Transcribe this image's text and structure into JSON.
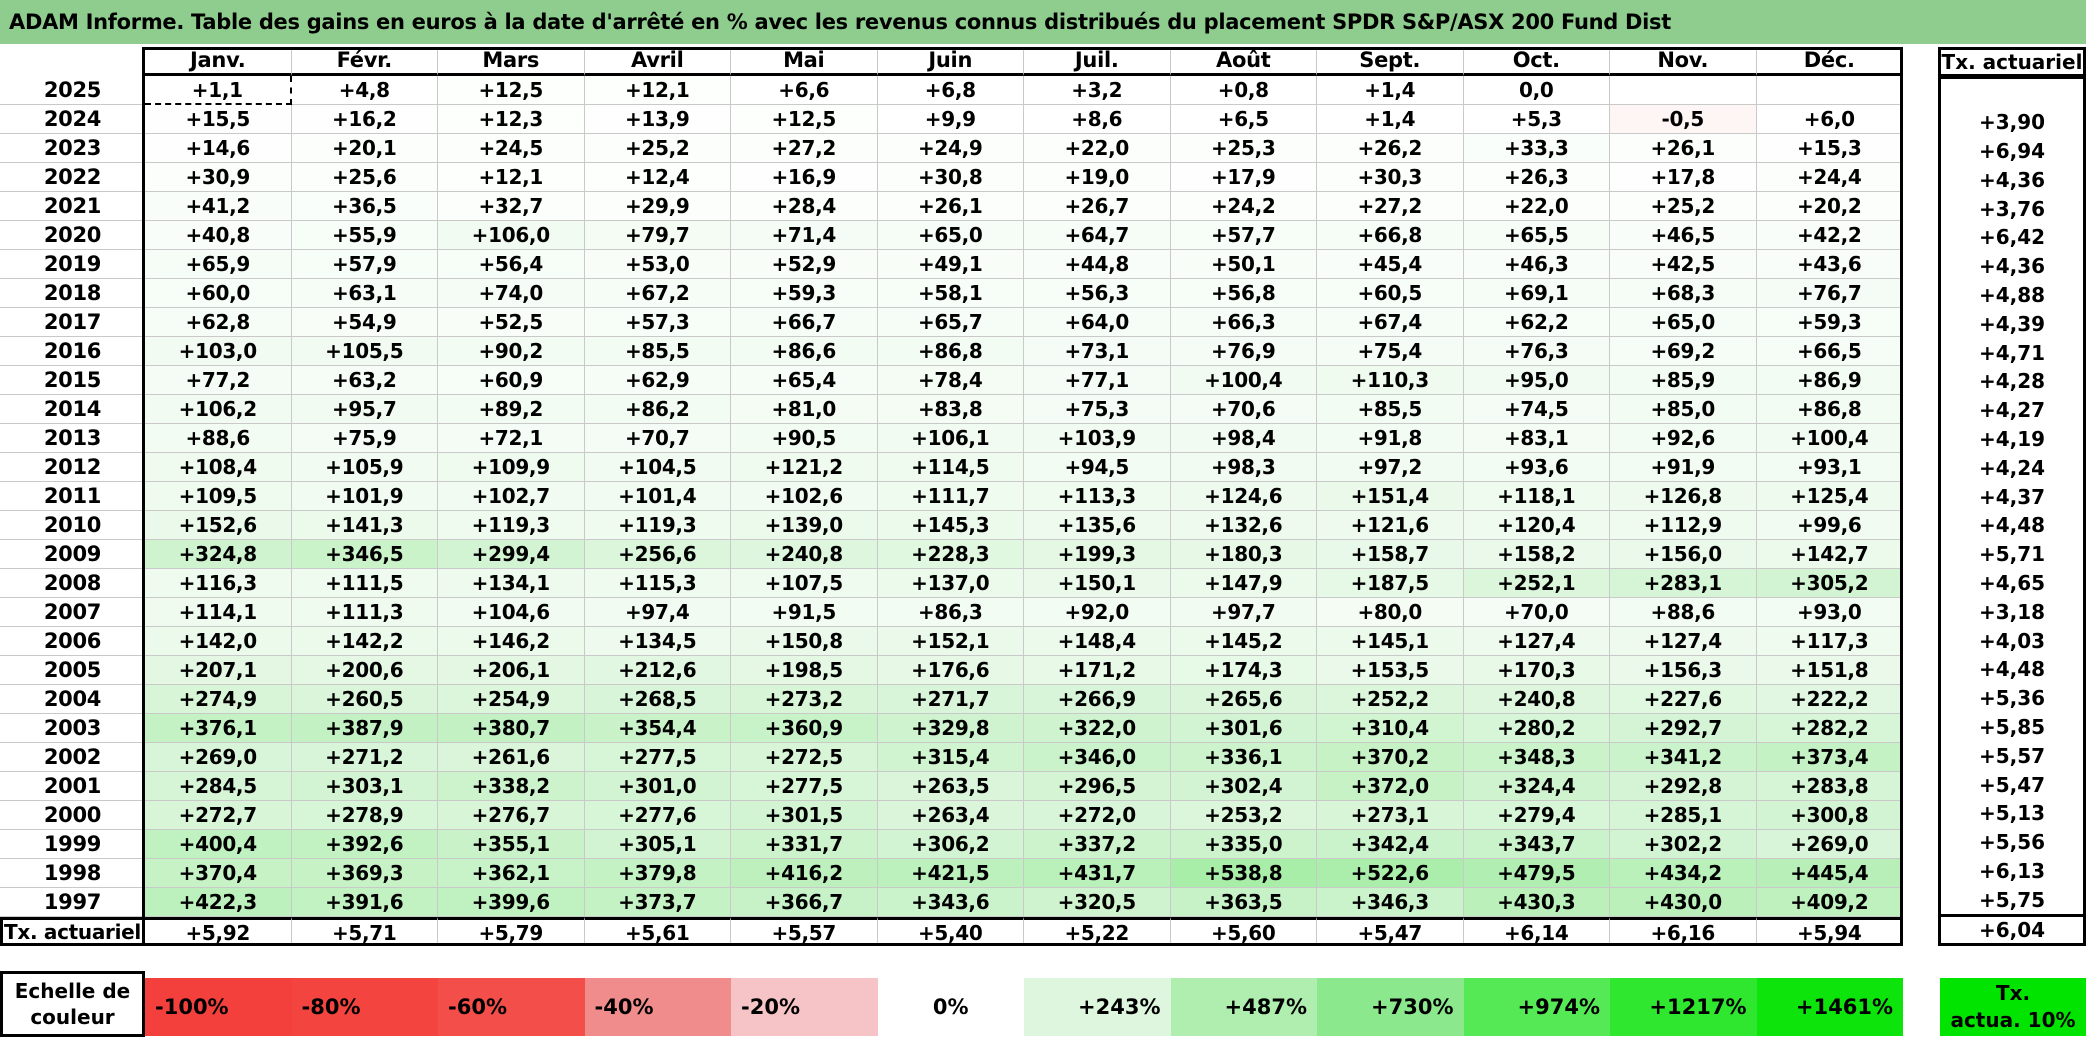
{
  "title": "ADAM Informe. Table des gains en euros à la date d'arrêté en % avec les revenus connus distribués du placement SPDR S&P/ASX 200 Fund Dist",
  "table": {
    "months": [
      "Janv.",
      "Févr.",
      "Mars",
      "Avril",
      "Mai",
      "Juin",
      "Juil.",
      "Août",
      "Sept.",
      "Oct.",
      "Nov.",
      "Déc."
    ],
    "right_header": "Tx. actuariel",
    "rows": [
      {
        "year": "2025",
        "values": [
          "+1,1",
          "+4,8",
          "+12,5",
          "+12,1",
          "+6,6",
          "+6,8",
          "+3,2",
          "+0,8",
          "+1,4",
          "0,0",
          "",
          ""
        ],
        "tx": ""
      },
      {
        "year": "2024",
        "values": [
          "+15,5",
          "+16,2",
          "+12,3",
          "+13,9",
          "+12,5",
          "+9,9",
          "+8,6",
          "+6,5",
          "+1,4",
          "+5,3",
          "-0,5",
          "+6,0"
        ],
        "tx": "+3,90"
      },
      {
        "year": "2023",
        "values": [
          "+14,6",
          "+20,1",
          "+24,5",
          "+25,2",
          "+27,2",
          "+24,9",
          "+22,0",
          "+25,3",
          "+26,2",
          "+33,3",
          "+26,1",
          "+15,3"
        ],
        "tx": "+6,94"
      },
      {
        "year": "2022",
        "values": [
          "+30,9",
          "+25,6",
          "+12,1",
          "+12,4",
          "+16,9",
          "+30,8",
          "+19,0",
          "+17,9",
          "+30,3",
          "+26,3",
          "+17,8",
          "+24,4"
        ],
        "tx": "+4,36"
      },
      {
        "year": "2021",
        "values": [
          "+41,2",
          "+36,5",
          "+32,7",
          "+29,9",
          "+28,4",
          "+26,1",
          "+26,7",
          "+24,2",
          "+27,2",
          "+22,0",
          "+25,2",
          "+20,2"
        ],
        "tx": "+3,76"
      },
      {
        "year": "2020",
        "values": [
          "+40,8",
          "+55,9",
          "+106,0",
          "+79,7",
          "+71,4",
          "+65,0",
          "+64,7",
          "+57,7",
          "+66,8",
          "+65,5",
          "+46,5",
          "+42,2"
        ],
        "tx": "+6,42"
      },
      {
        "year": "2019",
        "values": [
          "+65,9",
          "+57,9",
          "+56,4",
          "+53,0",
          "+52,9",
          "+49,1",
          "+44,8",
          "+50,1",
          "+45,4",
          "+46,3",
          "+42,5",
          "+43,6"
        ],
        "tx": "+4,36"
      },
      {
        "year": "2018",
        "values": [
          "+60,0",
          "+63,1",
          "+74,0",
          "+67,2",
          "+59,3",
          "+58,1",
          "+56,3",
          "+56,8",
          "+60,5",
          "+69,1",
          "+68,3",
          "+76,7"
        ],
        "tx": "+4,88"
      },
      {
        "year": "2017",
        "values": [
          "+62,8",
          "+54,9",
          "+52,5",
          "+57,3",
          "+66,7",
          "+65,7",
          "+64,0",
          "+66,3",
          "+67,4",
          "+62,2",
          "+65,0",
          "+59,3"
        ],
        "tx": "+4,39"
      },
      {
        "year": "2016",
        "values": [
          "+103,0",
          "+105,5",
          "+90,2",
          "+85,5",
          "+86,6",
          "+86,8",
          "+73,1",
          "+76,9",
          "+75,4",
          "+76,3",
          "+69,2",
          "+66,5"
        ],
        "tx": "+4,71"
      },
      {
        "year": "2015",
        "values": [
          "+77,2",
          "+63,2",
          "+60,9",
          "+62,9",
          "+65,4",
          "+78,4",
          "+77,1",
          "+100,4",
          "+110,3",
          "+95,0",
          "+85,9",
          "+86,9"
        ],
        "tx": "+4,28"
      },
      {
        "year": "2014",
        "values": [
          "+106,2",
          "+95,7",
          "+89,2",
          "+86,2",
          "+81,0",
          "+83,8",
          "+75,3",
          "+70,6",
          "+85,5",
          "+74,5",
          "+85,0",
          "+86,8"
        ],
        "tx": "+4,27"
      },
      {
        "year": "2013",
        "values": [
          "+88,6",
          "+75,9",
          "+72,1",
          "+70,7",
          "+90,5",
          "+106,1",
          "+103,9",
          "+98,4",
          "+91,8",
          "+83,1",
          "+92,6",
          "+100,4"
        ],
        "tx": "+4,19"
      },
      {
        "year": "2012",
        "values": [
          "+108,4",
          "+105,9",
          "+109,9",
          "+104,5",
          "+121,2",
          "+114,5",
          "+94,5",
          "+98,3",
          "+97,2",
          "+93,6",
          "+91,9",
          "+93,1"
        ],
        "tx": "+4,24"
      },
      {
        "year": "2011",
        "values": [
          "+109,5",
          "+101,9",
          "+102,7",
          "+101,4",
          "+102,6",
          "+111,7",
          "+113,3",
          "+124,6",
          "+151,4",
          "+118,1",
          "+126,8",
          "+125,4"
        ],
        "tx": "+4,37"
      },
      {
        "year": "2010",
        "values": [
          "+152,6",
          "+141,3",
          "+119,3",
          "+119,3",
          "+139,0",
          "+145,3",
          "+135,6",
          "+132,6",
          "+121,6",
          "+120,4",
          "+112,9",
          "+99,6"
        ],
        "tx": "+4,48"
      },
      {
        "year": "2009",
        "values": [
          "+324,8",
          "+346,5",
          "+299,4",
          "+256,6",
          "+240,8",
          "+228,3",
          "+199,3",
          "+180,3",
          "+158,7",
          "+158,2",
          "+156,0",
          "+142,7"
        ],
        "tx": "+5,71"
      },
      {
        "year": "2008",
        "values": [
          "+116,3",
          "+111,5",
          "+134,1",
          "+115,3",
          "+107,5",
          "+137,0",
          "+150,1",
          "+147,9",
          "+187,5",
          "+252,1",
          "+283,1",
          "+305,2"
        ],
        "tx": "+4,65"
      },
      {
        "year": "2007",
        "values": [
          "+114,1",
          "+111,3",
          "+104,6",
          "+97,4",
          "+91,5",
          "+86,3",
          "+92,0",
          "+97,7",
          "+80,0",
          "+70,0",
          "+88,6",
          "+93,0"
        ],
        "tx": "+3,18"
      },
      {
        "year": "2006",
        "values": [
          "+142,0",
          "+142,2",
          "+146,2",
          "+134,5",
          "+150,8",
          "+152,1",
          "+148,4",
          "+145,2",
          "+145,1",
          "+127,4",
          "+127,4",
          "+117,3"
        ],
        "tx": "+4,03"
      },
      {
        "year": "2005",
        "values": [
          "+207,1",
          "+200,6",
          "+206,1",
          "+212,6",
          "+198,5",
          "+176,6",
          "+171,2",
          "+174,3",
          "+153,5",
          "+170,3",
          "+156,3",
          "+151,8"
        ],
        "tx": "+4,48"
      },
      {
        "year": "2004",
        "values": [
          "+274,9",
          "+260,5",
          "+254,9",
          "+268,5",
          "+273,2",
          "+271,7",
          "+266,9",
          "+265,6",
          "+252,2",
          "+240,8",
          "+227,6",
          "+222,2"
        ],
        "tx": "+5,36"
      },
      {
        "year": "2003",
        "values": [
          "+376,1",
          "+387,9",
          "+380,7",
          "+354,4",
          "+360,9",
          "+329,8",
          "+322,0",
          "+301,6",
          "+310,4",
          "+280,2",
          "+292,7",
          "+282,2"
        ],
        "tx": "+5,85"
      },
      {
        "year": "2002",
        "values": [
          "+269,0",
          "+271,2",
          "+261,6",
          "+277,5",
          "+272,5",
          "+315,4",
          "+346,0",
          "+336,1",
          "+370,2",
          "+348,3",
          "+341,2",
          "+373,4"
        ],
        "tx": "+5,57"
      },
      {
        "year": "2001",
        "values": [
          "+284,5",
          "+303,1",
          "+338,2",
          "+301,0",
          "+277,5",
          "+263,5",
          "+296,5",
          "+302,4",
          "+372,0",
          "+324,4",
          "+292,8",
          "+283,8"
        ],
        "tx": "+5,47"
      },
      {
        "year": "2000",
        "values": [
          "+272,7",
          "+278,9",
          "+276,7",
          "+277,6",
          "+301,5",
          "+263,4",
          "+272,0",
          "+253,2",
          "+273,1",
          "+279,4",
          "+285,1",
          "+300,8"
        ],
        "tx": "+5,13"
      },
      {
        "year": "1999",
        "values": [
          "+400,4",
          "+392,6",
          "+355,1",
          "+305,1",
          "+331,7",
          "+306,2",
          "+337,2",
          "+335,0",
          "+342,4",
          "+343,7",
          "+302,2",
          "+269,0"
        ],
        "tx": "+5,56"
      },
      {
        "year": "1998",
        "values": [
          "+370,4",
          "+369,3",
          "+362,1",
          "+379,8",
          "+416,2",
          "+421,5",
          "+431,7",
          "+538,8",
          "+522,6",
          "+479,5",
          "+434,2",
          "+445,4"
        ],
        "tx": "+6,13"
      },
      {
        "year": "1997",
        "values": [
          "+422,3",
          "+391,6",
          "+399,6",
          "+373,7",
          "+366,7",
          "+343,6",
          "+320,5",
          "+363,5",
          "+346,3",
          "+430,3",
          "+430,0",
          "+409,2"
        ],
        "tx": "+5,75"
      }
    ],
    "footer": {
      "label": "Tx. actuariel",
      "values": [
        "+5,92",
        "+5,71",
        "+5,79",
        "+5,61",
        "+5,57",
        "+5,40",
        "+5,22",
        "+5,60",
        "+5,47",
        "+6,14",
        "+6,16",
        "+5,94"
      ],
      "tx": "+6,04"
    },
    "selected_cell": {
      "year": "2025",
      "month": "Janv.",
      "value": "+1,1"
    }
  },
  "legend": {
    "label": "Echelle de couleur",
    "cells": [
      {
        "label": "-100%",
        "color": "#F4403D",
        "align": "left"
      },
      {
        "label": "-80%",
        "color": "#F4443F",
        "align": "left"
      },
      {
        "label": "-60%",
        "color": "#F44E4B",
        "align": "left"
      },
      {
        "label": "-40%",
        "color": "#F18C8C",
        "align": "left"
      },
      {
        "label": "-20%",
        "color": "#F6C4C6",
        "align": "left"
      },
      {
        "label": "0%",
        "color": "#FFFFFF",
        "align": "center"
      },
      {
        "label": "+243%",
        "color": "#DEF6DE",
        "align": "right"
      },
      {
        "label": "+487%",
        "color": "#B0EEB0",
        "align": "right"
      },
      {
        "label": "+730%",
        "color": "#8CE88C",
        "align": "right"
      },
      {
        "label": "+974%",
        "color": "#55EA55",
        "align": "right"
      },
      {
        "label": "+1217%",
        "color": "#2EE72E",
        "align": "right"
      },
      {
        "label": "+1461%",
        "color": "#0CE40C",
        "align": "right"
      }
    ],
    "tx_box": {
      "line1": "Tx.",
      "line2": "actua. 10%",
      "color": "#00E400"
    }
  },
  "colors": {
    "title_bg": "#8FCD8F",
    "grid_line": "#C9C9C9",
    "border": "#000000",
    "negative_full_red": "#F43E3C",
    "value_color_stops_positive": [
      [
        0,
        "#FFFFFF"
      ],
      [
        243,
        "#DEF6DE"
      ],
      [
        487,
        "#B0EEB0"
      ],
      [
        730,
        "#8CE88C"
      ],
      [
        974,
        "#5AE75A"
      ],
      [
        1217,
        "#30E630"
      ],
      [
        1461,
        "#00E400"
      ]
    ]
  }
}
